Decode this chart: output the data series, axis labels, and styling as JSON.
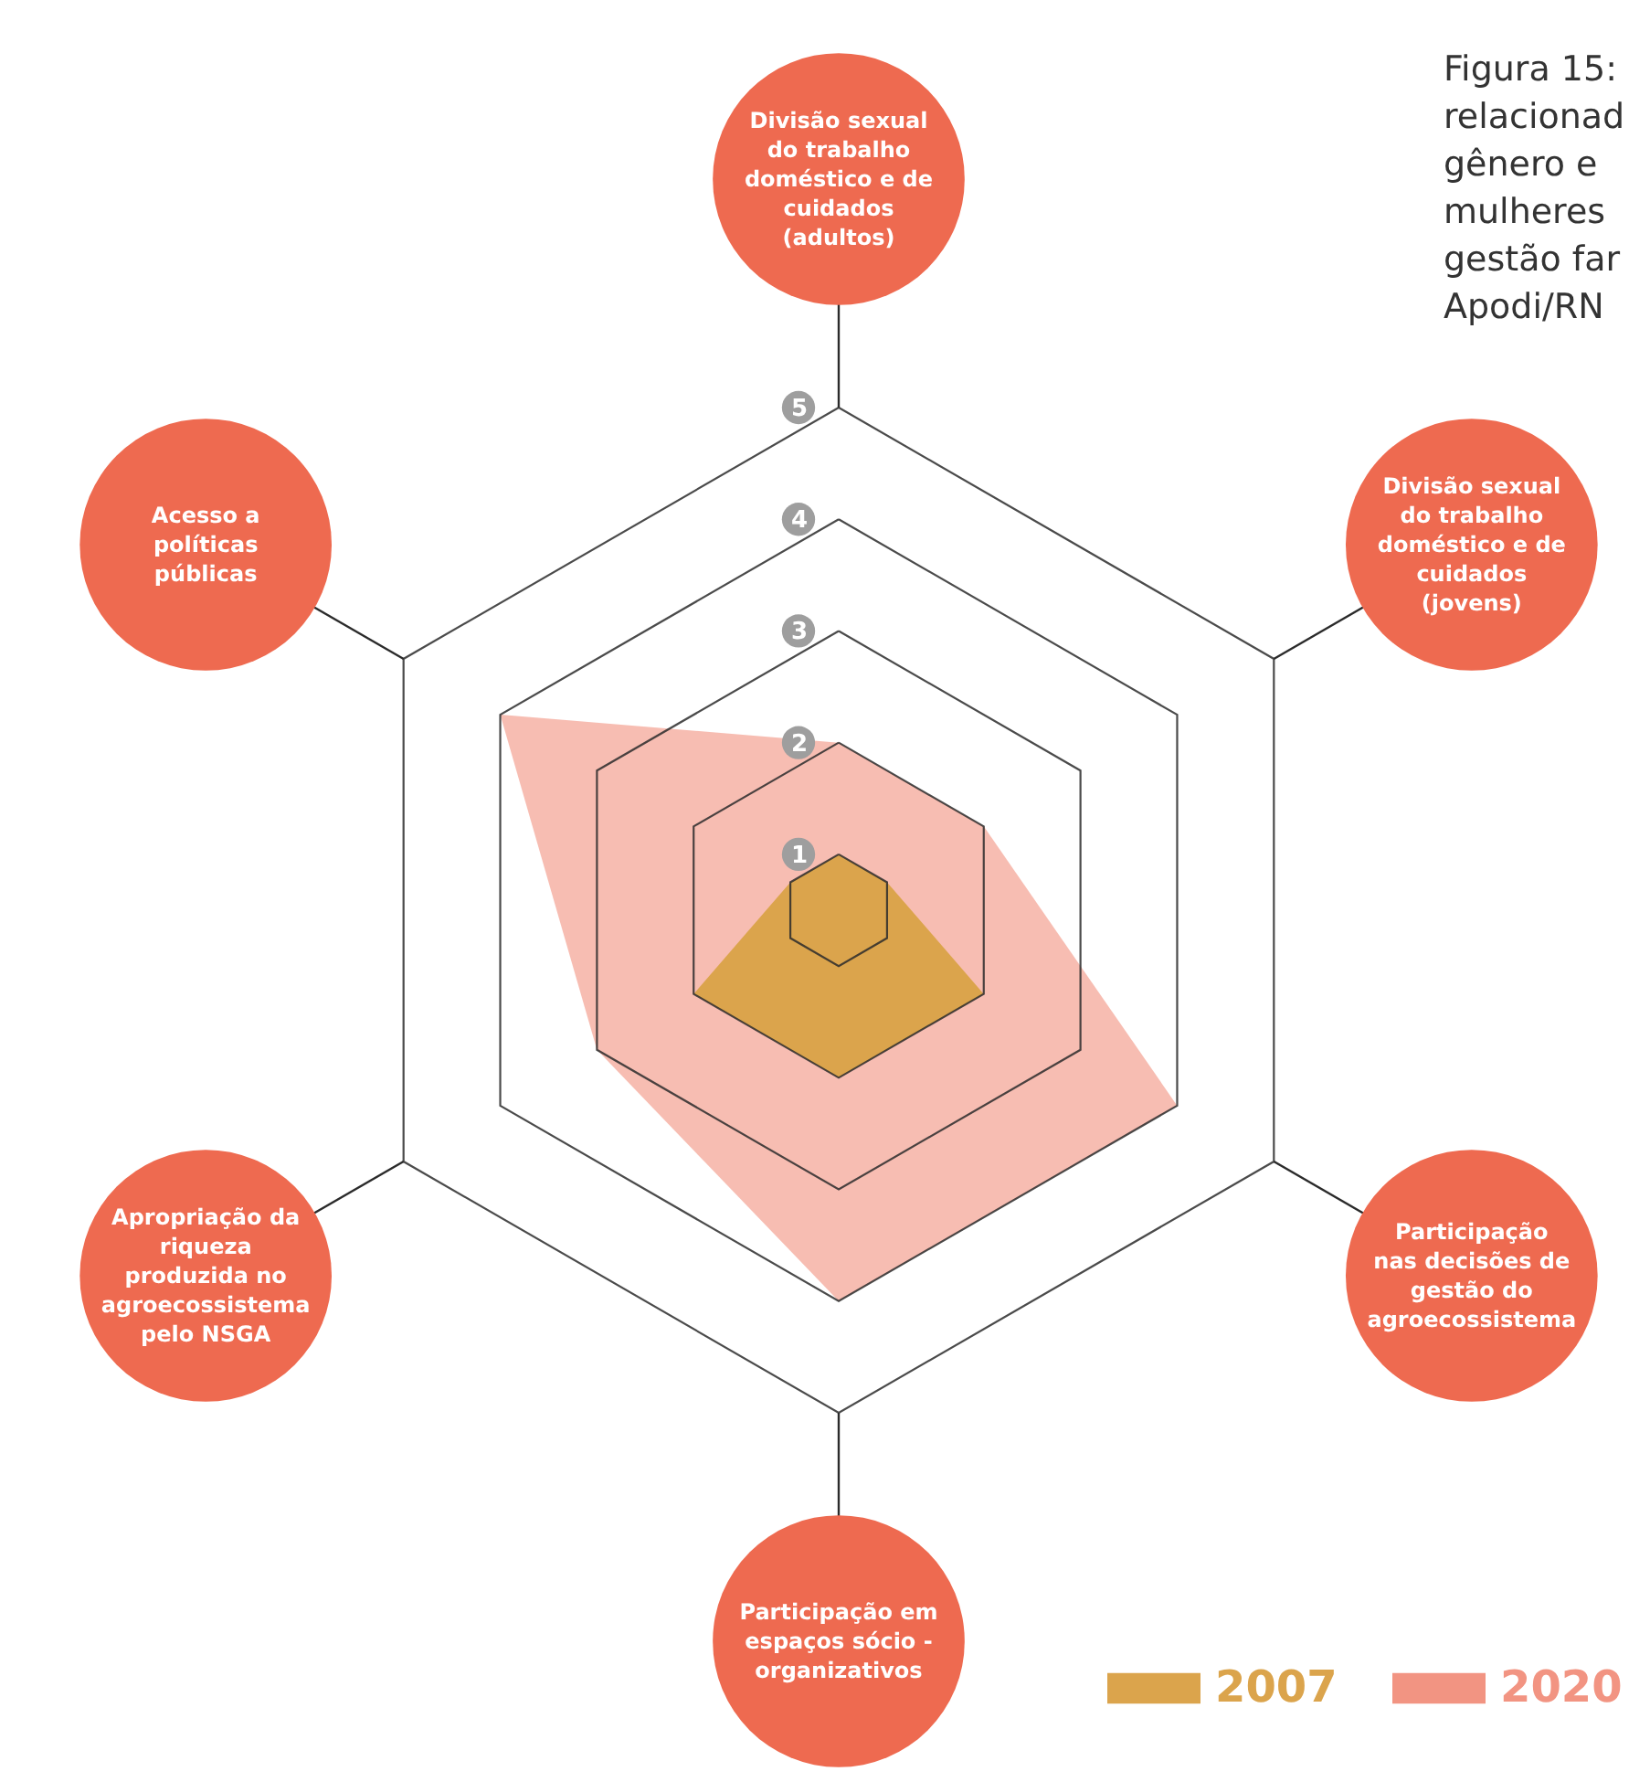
{
  "chart_data": {
    "type": "radar",
    "title": "Figura 15: relacionad gênero e mulheres gestão far Apodi/RN",
    "categories": [
      "Divisão sexual do trabalho doméstico e de cuidados (adultos)",
      "Divisão sexual do trabalho doméstico e de cuidados (jovens)",
      "Participação nas decisões de gestão do agroecossistema",
      "Participação em espaços sócio - organizativos",
      "Apropriação da riqueza produzida no agroecossistema pelo NSGA",
      "Acesso a políticas públicas"
    ],
    "series": [
      {
        "name": "2007",
        "color": "#dba44c",
        "values": [
          1,
          1,
          2,
          2,
          2,
          1
        ]
      },
      {
        "name": "2020",
        "color": "#f29482",
        "values": [
          2,
          2,
          4,
          4,
          3,
          4
        ]
      }
    ],
    "ylim": [
      0.5,
      5
    ],
    "yticks": [
      1,
      2,
      3,
      4,
      5
    ],
    "grid": true,
    "legend": "bottom right"
  }
}
